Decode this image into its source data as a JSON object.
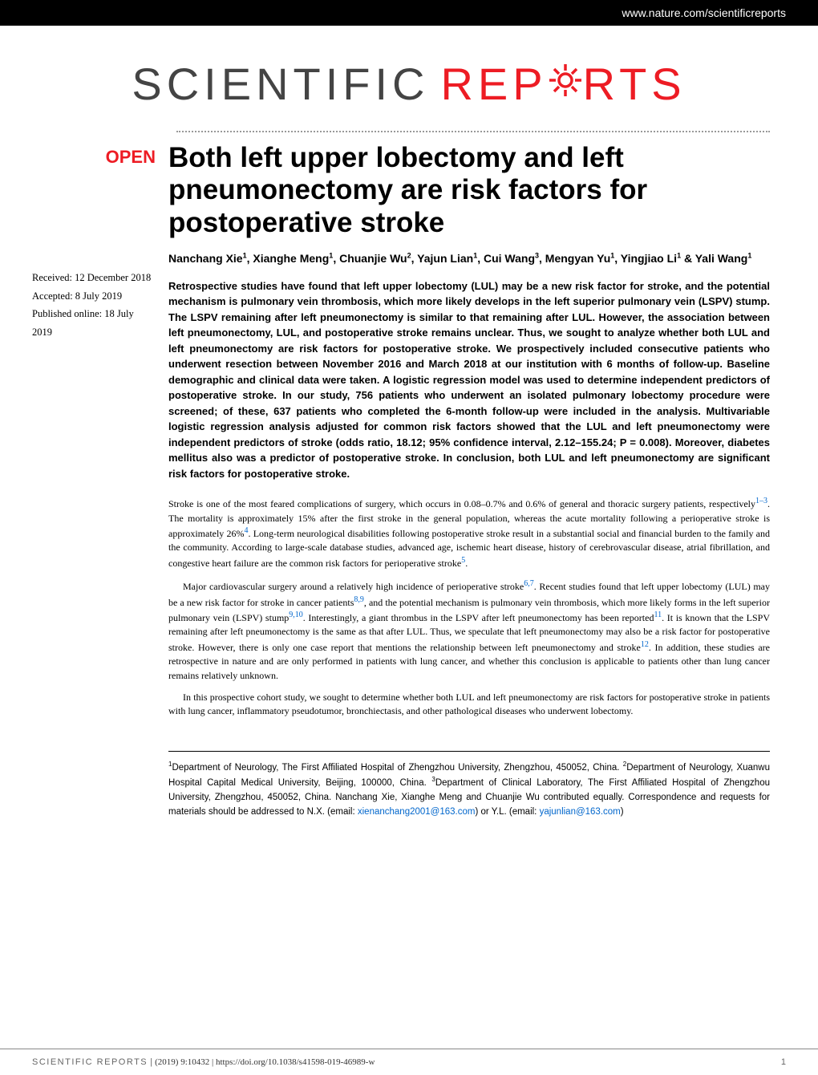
{
  "header": {
    "url": "www.nature.com/scientificreports"
  },
  "logo": {
    "part1": "SCIENTIFIC",
    "part2_prefix": "REP",
    "part2_suffix": "RTS",
    "gear_color": "#ed1c24"
  },
  "badge": {
    "open": "OPEN"
  },
  "dates": {
    "received": "Received: 12 December 2018",
    "accepted": "Accepted: 8 July 2019",
    "published": "Published online: 18 July 2019"
  },
  "title": "Both left upper lobectomy and left pneumonectomy are risk factors for postoperative stroke",
  "authors_html": "Nanchang Xie<sup>1</sup>, Xianghe Meng<sup>1</sup>, Chuanjie Wu<sup>2</sup>, Yajun Lian<sup>1</sup>, Cui Wang<sup>3</sup>, Mengyan Yu<sup>1</sup>, Yingjiao Li<sup>1</sup> & Yali Wang<sup>1</sup>",
  "abstract": "Retrospective studies have found that left upper lobectomy (LUL) may be a new risk factor for stroke, and the potential mechanism is pulmonary vein thrombosis, which more likely develops in the left superior pulmonary vein (LSPV) stump. The LSPV remaining after left pneumonectomy is similar to that remaining after LUL. However, the association between left pneumonectomy, LUL, and postoperative stroke remains unclear. Thus, we sought to analyze whether both LUL and left pneumonectomy are risk factors for postoperative stroke. We prospectively included consecutive patients who underwent resection between November 2016 and March 2018 at our institution with 6 months of follow-up. Baseline demographic and clinical data were taken. A logistic regression model was used to determine independent predictors of postoperative stroke. In our study, 756 patients who underwent an isolated pulmonary lobectomy procedure were screened; of these, 637 patients who completed the 6-month follow-up were included in the analysis. Multivariable logistic regression analysis adjusted for common risk factors showed that the LUL and left pneumonectomy were independent predictors of stroke (odds ratio, 18.12; 95% confidence interval, 2.12–155.24; P = 0.008). Moreover, diabetes mellitus also was a predictor of postoperative stroke. In conclusion, both LUL and left pneumonectomy are significant risk factors for postoperative stroke.",
  "body": {
    "p1_a": "Stroke is one of the most feared complications of surgery, which occurs in 0.08–0.7% and 0.6% of general and thoracic surgery patients, respectively",
    "p1_ref1": "1–3",
    "p1_b": ". The mortality is approximately 15% after the first stroke in the general population, whereas the acute mortality following a perioperative stroke is approximately 26%",
    "p1_ref2": "4",
    "p1_c": ". Long-term neurological disabilities following postoperative stroke result in a substantial social and financial burden to the family and the community. According to large-scale database studies, advanced age, ischemic heart disease, history of cerebrovascular disease, atrial fibrillation, and congestive heart failure are the common risk factors for perioperative stroke",
    "p1_ref3": "5",
    "p1_d": ".",
    "p2_a": "Major cardiovascular surgery around a relatively high incidence of perioperative stroke",
    "p2_ref1": "6,7",
    "p2_b": ". Recent studies found that left upper lobectomy (LUL) may be a new risk factor for stroke in cancer patients",
    "p2_ref2": "8,9",
    "p2_c": ", and the potential mechanism is pulmonary vein thrombosis, which more likely forms in the left superior pulmonary vein (LSPV) stump",
    "p2_ref3": "9,10",
    "p2_d": ". Interestingly, a giant thrombus in the LSPV after left pneumonectomy has been reported",
    "p2_ref4": "11",
    "p2_e": ". It is known that the LSPV remaining after left pneumonectomy is the same as that after LUL. Thus, we speculate that left pneumonectomy may also be a risk factor for postoperative stroke. However, there is only one case report that mentions the relationship between left pneumonectomy and stroke",
    "p2_ref5": "12",
    "p2_f": ". In addition, these studies are retrospective in nature and are only performed in patients with lung cancer, and whether this conclusion is applicable to patients other than lung cancer remains relatively unknown.",
    "p3": "In this prospective cohort study, we sought to determine whether both LUL and left pneumonectomy are risk factors for postoperative stroke in patients with lung cancer, inflammatory pseudotumor, bronchiectasis, and other pathological diseases who underwent lobectomy."
  },
  "affiliations_html": "<sup>1</sup>Department of Neurology, The First Affiliated Hospital of Zhengzhou University, Zhengzhou, 450052, China. <sup>2</sup>Department of Neurology, Xuanwu Hospital Capital Medical University, Beijing, 100000, China. <sup>3</sup>Department of Clinical Laboratory, The First Affiliated Hospital of Zhengzhou University, Zhengzhou, 450052, China. Nanchang Xie, Xianghe Meng and Chuanjie Wu contributed equally. Correspondence and requests for materials should be addressed to N.X. (email: <span class=\"email-link\">xienanchang2001@163.com</span>) or Y.L. (email: <span class=\"email-link\">yajunlian@163.com</span>)",
  "footer": {
    "journal": "SCIENTIFIC REPORTS",
    "citation": "(2019) 9:10432 | https://doi.org/10.1038/s41598-019-46989-w",
    "page": "1"
  },
  "colors": {
    "brand_red": "#ed1c24",
    "link_blue": "#0066cc",
    "header_bg": "#000000",
    "text": "#000000"
  }
}
